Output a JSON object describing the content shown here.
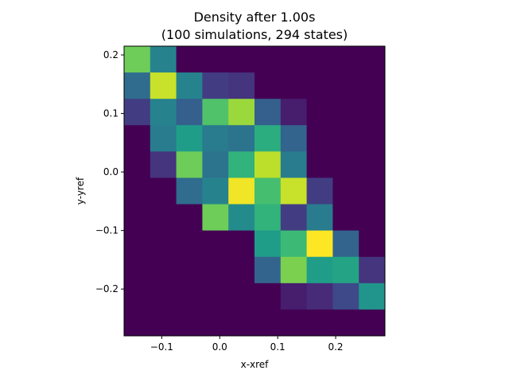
{
  "chart_data": {
    "type": "heatmap",
    "title": [
      "Density after 1.00s",
      "(100 simulations, 294 states)"
    ],
    "xlabel": "x-xref",
    "ylabel": "y-yref",
    "xlim": [
      -0.165,
      0.285
    ],
    "ylim": [
      -0.28,
      0.215
    ],
    "x_edges": [
      -0.165,
      -0.12,
      -0.075,
      -0.03,
      0.015,
      0.06,
      0.105,
      0.15,
      0.195,
      0.24,
      0.285
    ],
    "y_edges": [
      -0.28,
      -0.235,
      -0.19,
      -0.145,
      -0.1,
      -0.055,
      -0.01,
      0.035,
      0.08,
      0.125,
      0.17,
      0.215
    ],
    "x_ticks": [
      -0.1,
      0.0,
      0.1,
      0.2
    ],
    "x_tick_labels": [
      "−0.1",
      "0.0",
      "0.1",
      "0.2"
    ],
    "y_ticks": [
      -0.2,
      -0.1,
      0.0,
      0.1,
      0.2
    ],
    "y_tick_labels": [
      "−0.2",
      "−0.1",
      "0.0",
      "0.1",
      "0.2"
    ],
    "colormap": "viridis",
    "grid": false,
    "values_top_to_bottom": [
      [
        0.78,
        0.45,
        0,
        0,
        0,
        0,
        0,
        0,
        0,
        0
      ],
      [
        0.35,
        0.92,
        0.45,
        0.18,
        0.15,
        0,
        0,
        0,
        0,
        0
      ],
      [
        0.18,
        0.45,
        0.3,
        0.72,
        0.85,
        0.3,
        0.08,
        0,
        0,
        0
      ],
      [
        0,
        0.42,
        0.55,
        0.42,
        0.38,
        0.62,
        0.32,
        0,
        0,
        0
      ],
      [
        0,
        0.15,
        0.78,
        0.38,
        0.65,
        0.9,
        0.42,
        0,
        0,
        0
      ],
      [
        0,
        0,
        0.35,
        0.45,
        0.98,
        0.7,
        0.92,
        0.18,
        0,
        0
      ],
      [
        0,
        0,
        0,
        0.78,
        0.48,
        0.65,
        0.18,
        0.42,
        0,
        0
      ],
      [
        0,
        0,
        0,
        0,
        0,
        0.55,
        0.68,
        1.0,
        0.32,
        0
      ],
      [
        0,
        0,
        0,
        0,
        0,
        0.32,
        0.8,
        0.55,
        0.58,
        0.15
      ],
      [
        0,
        0,
        0,
        0,
        0,
        0,
        0.08,
        0.12,
        0.22,
        0.52
      ],
      [
        0,
        0,
        0,
        0,
        0,
        0,
        0,
        0,
        0,
        0
      ]
    ]
  }
}
